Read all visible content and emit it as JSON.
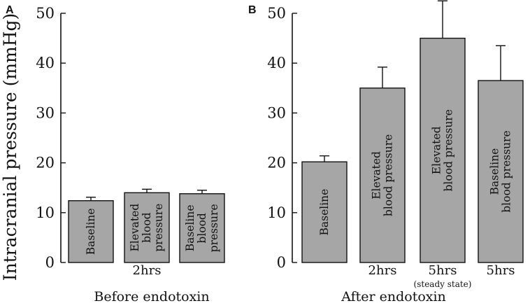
{
  "chart_data": [
    {
      "type": "bar",
      "panel": "A",
      "ylabel": "Intracranial pressure (mmHg)",
      "xlabel": "Before endotoxin",
      "ylim": [
        0,
        50
      ],
      "yticks": [
        0,
        10,
        20,
        30,
        40,
        50
      ],
      "bar_color": "#a6a6a6",
      "categories": [
        {
          "label": [
            "Baseline"
          ],
          "group": "",
          "sub": ""
        },
        {
          "label": [
            "Elevated",
            "blood",
            "pressure"
          ],
          "group": "2hrs",
          "sub": ""
        },
        {
          "label": [
            "Baseline",
            "blood",
            "pressure"
          ],
          "group": "",
          "sub": ""
        }
      ],
      "values": [
        12.4,
        14.0,
        13.8
      ],
      "errors": [
        0.7,
        0.7,
        0.7
      ]
    },
    {
      "type": "bar",
      "panel": "B",
      "ylabel": "",
      "xlabel": "After endotoxin",
      "ylim": [
        0,
        50
      ],
      "yticks": [
        0,
        10,
        20,
        30,
        40,
        50
      ],
      "bar_color": "#a6a6a6",
      "categories": [
        {
          "label": [
            "Baseline"
          ],
          "group": "",
          "sub": ""
        },
        {
          "label": [
            "Elevated",
            "blood pressure"
          ],
          "group": "2hrs",
          "sub": ""
        },
        {
          "label": [
            "Elevated",
            "blood pressure"
          ],
          "group": "5hrs",
          "sub": "(steady state)"
        },
        {
          "label": [
            "Baseline",
            "blood pressure"
          ],
          "group": "5hrs",
          "sub": ""
        }
      ],
      "values": [
        20.2,
        35.0,
        45.0,
        36.5
      ],
      "errors": [
        1.2,
        4.2,
        7.5,
        7.0
      ]
    }
  ]
}
